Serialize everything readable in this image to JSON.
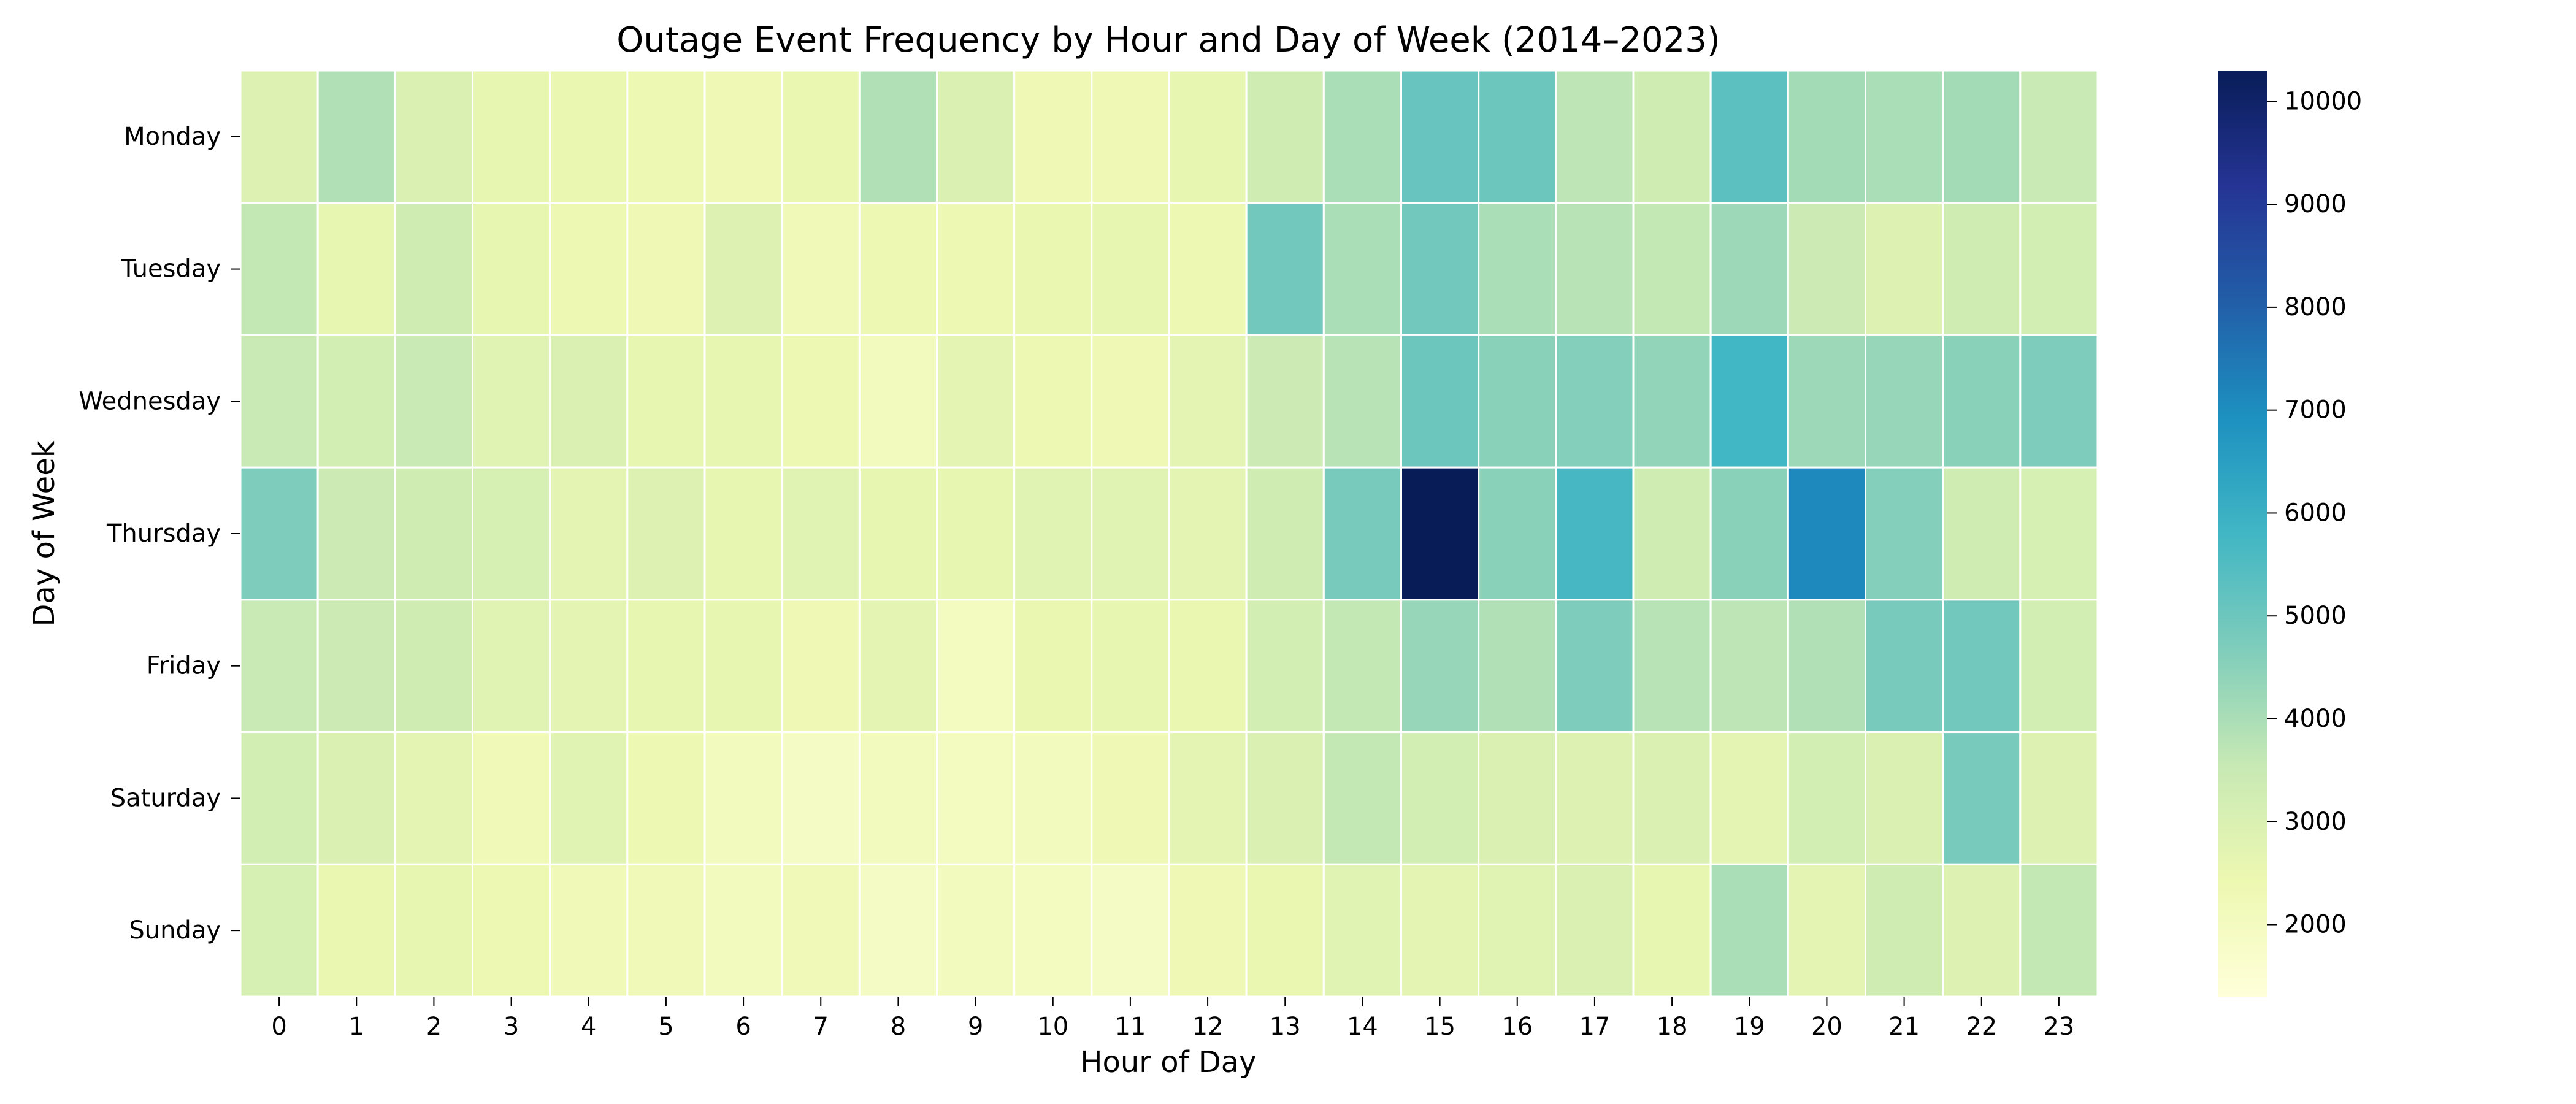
{
  "chart_data": {
    "type": "heatmap",
    "title": "Outage Event Frequency by Hour and Day of Week (2014–2023)",
    "xlabel": "Hour of Day",
    "ylabel": "Day of Week",
    "x_categories": [
      "0",
      "1",
      "2",
      "3",
      "4",
      "5",
      "6",
      "7",
      "8",
      "9",
      "10",
      "11",
      "12",
      "13",
      "14",
      "15",
      "16",
      "17",
      "18",
      "19",
      "20",
      "21",
      "22",
      "23"
    ],
    "y_categories": [
      "Monday",
      "Tuesday",
      "Wednesday",
      "Thursday",
      "Friday",
      "Saturday",
      "Sunday"
    ],
    "values": [
      [
        2900,
        3900,
        3000,
        2600,
        2500,
        2400,
        2300,
        2500,
        3900,
        3000,
        2300,
        2300,
        2600,
        3300,
        4000,
        5100,
        5000,
        3700,
        3300,
        5300,
        4100,
        4000,
        4100,
        3500
      ],
      [
        3600,
        2600,
        3300,
        2600,
        2400,
        2300,
        2900,
        2200,
        2400,
        2400,
        2500,
        2600,
        2400,
        4900,
        4000,
        4900,
        4000,
        3800,
        3600,
        4200,
        3400,
        2900,
        3300,
        3200
      ],
      [
        3500,
        3200,
        3500,
        2800,
        3000,
        2600,
        2600,
        2400,
        2100,
        2700,
        2400,
        2300,
        2700,
        3400,
        3800,
        5000,
        4500,
        4600,
        4400,
        5800,
        4200,
        4300,
        4500,
        4700
      ],
      [
        4700,
        3400,
        3300,
        3100,
        2700,
        2900,
        2600,
        2800,
        2600,
        2600,
        2800,
        2800,
        2700,
        3300,
        4800,
        10300,
        4500,
        5700,
        3300,
        4500,
        7100,
        4600,
        3300,
        3100
      ],
      [
        3500,
        3400,
        3300,
        2800,
        2700,
        2600,
        2600,
        2300,
        2700,
        2000,
        2500,
        2600,
        2500,
        3200,
        3600,
        4300,
        3900,
        4700,
        3800,
        3700,
        3900,
        4800,
        4900,
        3200
      ],
      [
        3200,
        3000,
        2700,
        2200,
        2800,
        2400,
        2100,
        1900,
        2100,
        2000,
        2100,
        2300,
        2700,
        3000,
        3600,
        3200,
        3000,
        2900,
        3000,
        2700,
        3200,
        3000,
        4800,
        2900
      ],
      [
        3100,
        2500,
        2600,
        2400,
        2200,
        2200,
        2100,
        2200,
        1900,
        2100,
        2000,
        1900,
        2300,
        2500,
        2800,
        2700,
        2800,
        3000,
        2600,
        4000,
        2700,
        3300,
        2900,
        3600
      ]
    ],
    "colorbar": {
      "colormap": "YlGnBu",
      "range": [
        1300,
        10300
      ],
      "ticks": [
        2000,
        3000,
        4000,
        5000,
        6000,
        7000,
        8000,
        9000,
        10000
      ]
    },
    "cell_border_color": "#ffffff"
  }
}
